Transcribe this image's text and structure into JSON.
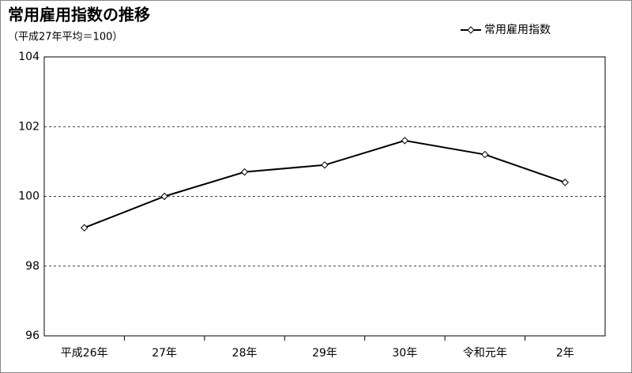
{
  "chart_data": {
    "type": "line",
    "title": "常用雇用指数の推移",
    "subtitle": "（平成27年平均＝100）",
    "categories": [
      "平成26年",
      "27年",
      "28年",
      "29年",
      "30年",
      "令和元年",
      "2年"
    ],
    "series": [
      {
        "name": "常用雇用指数",
        "color": "#000000",
        "values": [
          99.1,
          100.0,
          100.7,
          100.9,
          101.6,
          101.2,
          100.4
        ]
      }
    ],
    "ylim": [
      96,
      104
    ],
    "yticks": [
      96,
      98,
      100,
      102,
      104
    ],
    "grid": true,
    "legend": "top-right"
  }
}
